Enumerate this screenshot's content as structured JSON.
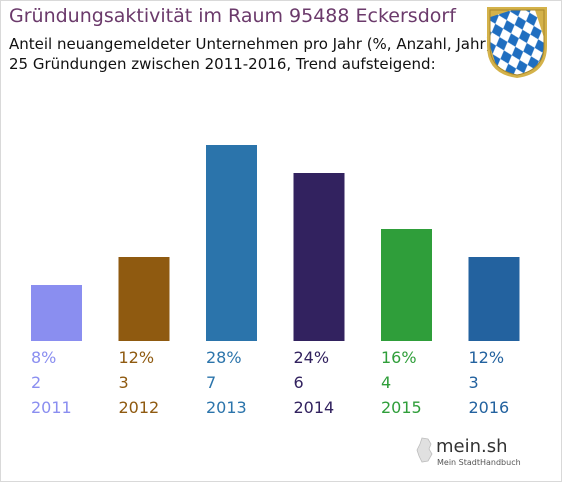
{
  "header": {
    "title": "Gründungsaktivität im Raum 95488 Eckersdorf",
    "subtitle_line1": "Anteil neuangemeldeter Unternehmen pro Jahr (%, Anzahl, Jahr)",
    "subtitle_line2": "25 Gründungen zwischen 2011-2016, Trend aufsteigend:"
  },
  "chart_data": {
    "type": "bar",
    "categories": [
      "2011",
      "2012",
      "2013",
      "2014",
      "2015",
      "2016"
    ],
    "values": [
      8,
      12,
      28,
      24,
      16,
      12
    ],
    "counts": [
      2,
      3,
      7,
      6,
      4,
      3
    ],
    "percent_labels": [
      "8%",
      "12%",
      "28%",
      "24%",
      "16%",
      "12%"
    ],
    "count_labels": [
      "2",
      "3",
      "7",
      "6",
      "4",
      "3"
    ],
    "colors": [
      "#8a8ef0",
      "#8f5a10",
      "#2b74ab",
      "#32225f",
      "#2f9e3a",
      "#23629f"
    ],
    "title": "Gründungsaktivität im Raum 95488 Eckersdorf",
    "xlabel": "",
    "ylabel": "",
    "grid": false
  },
  "logo": {
    "text": "mein.sh",
    "tagline": "Mein StadtHandbuch"
  }
}
